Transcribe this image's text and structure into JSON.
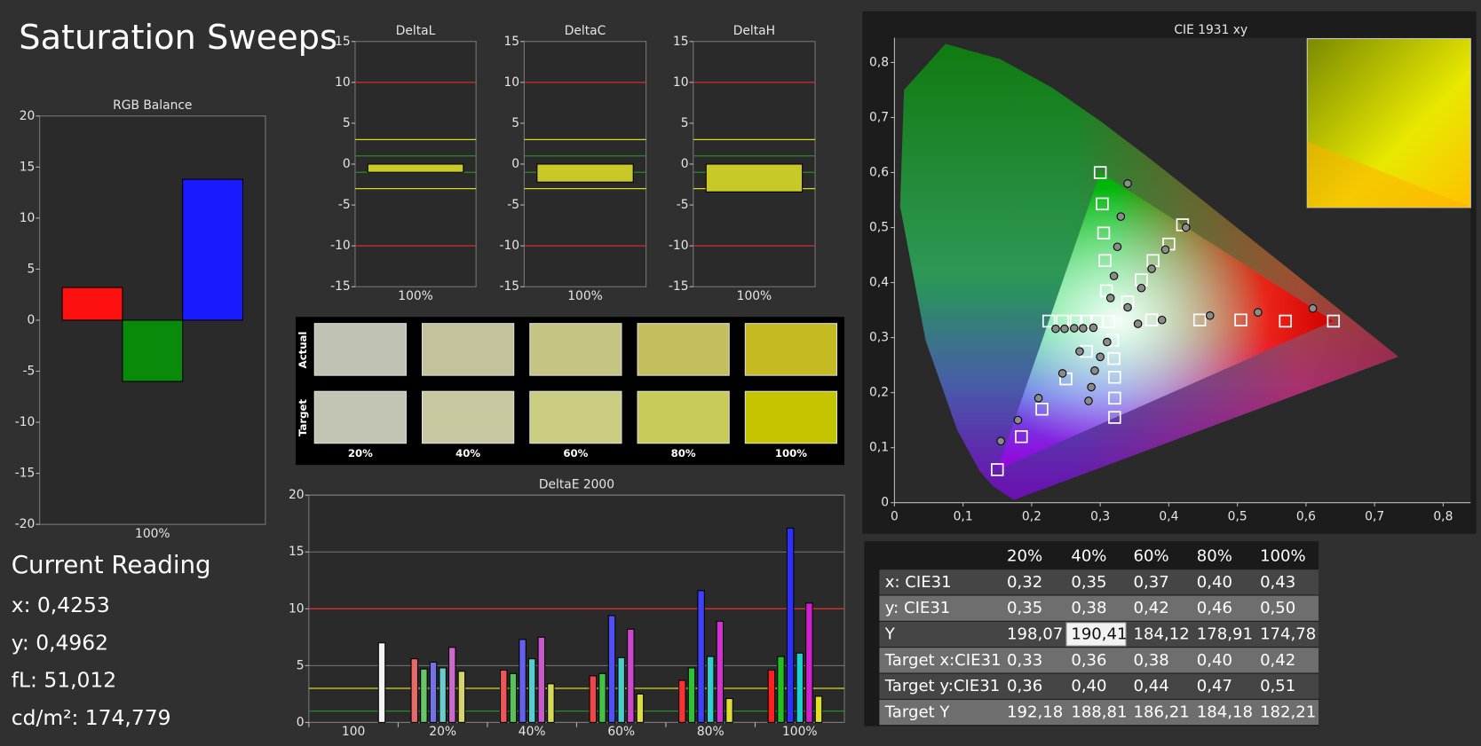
{
  "title": "Saturation Sweeps",
  "current_reading": {
    "heading": "Current Reading",
    "lines": [
      "x: 0,4253",
      "y: 0,4962",
      "fL: 51,012",
      "cd/m²: 174,779"
    ]
  },
  "swatches": {
    "row_labels": [
      "Actual",
      "Target"
    ],
    "columns": [
      "20%",
      "40%",
      "60%",
      "80%",
      "100%"
    ],
    "colors": [
      [
        "#c0c2b4",
        "#c4c29c",
        "#c6c482",
        "#c4be5c",
        "#c6ba22"
      ],
      [
        "#c2c4b4",
        "#c8c8a0",
        "#cacc82",
        "#c8cb58",
        "#c4c400"
      ]
    ]
  },
  "table": {
    "columns": [
      "20%",
      "40%",
      "60%",
      "80%",
      "100%"
    ],
    "rows": [
      {
        "label": "x: CIE31",
        "cells": [
          "0,32",
          "0,35",
          "0,37",
          "0,40",
          "0,43"
        ]
      },
      {
        "label": "y: CIE31",
        "cells": [
          "0,35",
          "0,38",
          "0,42",
          "0,46",
          "0,50"
        ]
      },
      {
        "label": "Y",
        "cells": [
          "198,07",
          "190,41",
          "184,12",
          "178,91",
          "174,78"
        ]
      },
      {
        "label": "Target x:CIE31",
        "cells": [
          "0,33",
          "0,36",
          "0,38",
          "0,40",
          "0,42"
        ]
      },
      {
        "label": "Target y:CIE31",
        "cells": [
          "0,36",
          "0,40",
          "0,44",
          "0,47",
          "0,51"
        ]
      },
      {
        "label": "Target Y",
        "cells": [
          "192,18",
          "188,81",
          "186,21",
          "184,18",
          "182,21"
        ]
      }
    ],
    "selected_cell": {
      "row": 2,
      "cell": 1
    }
  },
  "chart_data": [
    {
      "type": "bar",
      "title": "RGB Balance",
      "categories": [
        "100%"
      ],
      "series": [
        {
          "color": "#ff1010",
          "values": [
            3.2
          ]
        },
        {
          "color": "#0a8a0a",
          "values": [
            -6.0
          ]
        },
        {
          "color": "#1a1aff",
          "values": [
            13.8
          ]
        }
      ],
      "ylim": [
        -20,
        20
      ],
      "yticks": [
        -20,
        -15,
        -10,
        -5,
        0,
        5,
        10,
        15,
        20
      ],
      "grid": false
    },
    {
      "type": "bar",
      "title": "DeltaL",
      "categories": [
        "100%"
      ],
      "values": [
        -1.0
      ],
      "color": "#c8c828",
      "ylim": [
        -15,
        15
      ],
      "yticks": [
        -15,
        -10,
        -5,
        0,
        5,
        10,
        15
      ],
      "grid": false,
      "reference_lines": [
        {
          "value": 10,
          "color": "#d03030"
        },
        {
          "value": -10,
          "color": "#d03030"
        },
        {
          "value": 3,
          "color": "#d8d820"
        },
        {
          "value": -3,
          "color": "#d8d820"
        },
        {
          "value": 1,
          "color": "#2a8a2a"
        },
        {
          "value": -1,
          "color": "#2a8a2a"
        }
      ]
    },
    {
      "type": "bar",
      "title": "DeltaC",
      "categories": [
        "100%"
      ],
      "values": [
        -2.2
      ],
      "color": "#c8c828",
      "ylim": [
        -15,
        15
      ],
      "yticks": [
        -15,
        -10,
        -5,
        0,
        5,
        10,
        15
      ],
      "grid": false,
      "reference_lines": [
        {
          "value": 10,
          "color": "#d03030"
        },
        {
          "value": -10,
          "color": "#d03030"
        },
        {
          "value": 3,
          "color": "#d8d820"
        },
        {
          "value": -3,
          "color": "#d8d820"
        },
        {
          "value": 1,
          "color": "#2a8a2a"
        },
        {
          "value": -1,
          "color": "#2a8a2a"
        }
      ]
    },
    {
      "type": "bar",
      "title": "DeltaH",
      "categories": [
        "100%"
      ],
      "values": [
        -3.4
      ],
      "color": "#c8c828",
      "ylim": [
        -15,
        15
      ],
      "yticks": [
        -15,
        -10,
        -5,
        0,
        5,
        10,
        15
      ],
      "grid": false,
      "reference_lines": [
        {
          "value": 10,
          "color": "#d03030"
        },
        {
          "value": -10,
          "color": "#d03030"
        },
        {
          "value": 3,
          "color": "#d8d820"
        },
        {
          "value": -3,
          "color": "#d8d820"
        },
        {
          "value": 1,
          "color": "#2a8a2a"
        },
        {
          "value": -1,
          "color": "#2a8a2a"
        }
      ]
    },
    {
      "type": "bar",
      "title": "DeltaE 2000",
      "categories": [
        "100",
        "20%",
        "40%",
        "60%",
        "80%",
        "100%"
      ],
      "series": [
        {
          "color": "#ff2020",
          "values": [
            null,
            5.6,
            4.6,
            4.1,
            3.7,
            4.6
          ]
        },
        {
          "color": "#20c020",
          "values": [
            null,
            4.7,
            4.3,
            4.3,
            4.8,
            5.8
          ]
        },
        {
          "color": "#3030ff",
          "values": [
            null,
            5.3,
            7.3,
            9.4,
            11.6,
            17.1
          ]
        },
        {
          "color": "#20d0d0",
          "values": [
            null,
            4.8,
            5.6,
            5.7,
            5.8,
            6.1
          ]
        },
        {
          "color": "#d020d0",
          "values": [
            null,
            6.6,
            7.5,
            8.2,
            8.9,
            10.5
          ]
        },
        {
          "color": "#e0e020",
          "values": [
            null,
            4.5,
            3.4,
            2.5,
            2.1,
            2.3
          ]
        },
        {
          "color": "#f4f4f4",
          "values": [
            7.0,
            null,
            null,
            null,
            null,
            null
          ]
        }
      ],
      "ylim": [
        0,
        20
      ],
      "yticks": [
        0,
        5,
        10,
        15,
        20
      ],
      "grid": true,
      "reference_lines": [
        {
          "value": 10,
          "color": "#d03030"
        },
        {
          "value": 3,
          "color": "#d8d820"
        },
        {
          "value": 1,
          "color": "#2a8a2a"
        }
      ]
    },
    {
      "type": "scatter",
      "title": "CIE 1931 xy",
      "xlim": [
        0,
        0.84
      ],
      "ylim": [
        0,
        0.845
      ],
      "xticks": [
        0,
        {
          "value": 0.1,
          "label": "0,1"
        },
        {
          "value": 0.2,
          "label": "0,2"
        },
        {
          "value": 0.3,
          "label": "0,3"
        },
        {
          "value": 0.4,
          "label": "0,4"
        },
        {
          "value": 0.5,
          "label": "0,5"
        },
        {
          "value": 0.6,
          "label": "0,6"
        },
        {
          "value": 0.7,
          "label": "0,7"
        },
        {
          "value": 0.8,
          "label": "0,8"
        }
      ],
      "yticks": [
        0,
        {
          "value": 0.1,
          "label": "0,1"
        },
        {
          "value": 0.2,
          "label": "0,2"
        },
        {
          "value": 0.3,
          "label": "0,3"
        },
        {
          "value": 0.4,
          "label": "0,4"
        },
        {
          "value": 0.5,
          "label": "0,5"
        },
        {
          "value": 0.6,
          "label": "0,6"
        },
        {
          "value": 0.7,
          "label": "0,7"
        },
        {
          "value": 0.8,
          "label": "0,8"
        }
      ],
      "series": [
        {
          "marker": "square",
          "color": "#ffffff",
          "x": [
            0.64,
            0.57,
            0.505,
            0.445,
            0.375,
            0.3,
            0.303,
            0.305,
            0.307,
            0.309,
            0.15,
            0.185,
            0.215,
            0.25,
            0.28,
            0.225,
            0.245,
            0.265,
            0.28,
            0.295,
            0.321,
            0.321,
            0.321,
            0.32,
            0.318,
            0.42,
            0.4,
            0.377,
            0.36,
            0.34,
            0.3127
          ],
          "y": [
            0.33,
            0.33,
            0.332,
            0.332,
            0.332,
            0.6,
            0.543,
            0.49,
            0.44,
            0.385,
            0.06,
            0.12,
            0.17,
            0.225,
            0.275,
            0.33,
            0.33,
            0.33,
            0.33,
            0.33,
            0.155,
            0.19,
            0.228,
            0.262,
            0.295,
            0.505,
            0.47,
            0.44,
            0.405,
            0.365,
            0.329
          ]
        },
        {
          "marker": "circle",
          "color": "#8a8a8a",
          "x": [
            0.61,
            0.53,
            0.46,
            0.39,
            0.355,
            0.34,
            0.33,
            0.325,
            0.32,
            0.315,
            0.155,
            0.18,
            0.21,
            0.245,
            0.27,
            0.235,
            0.248,
            0.262,
            0.275,
            0.29,
            0.283,
            0.287,
            0.292,
            0.3,
            0.31,
            0.425,
            0.395,
            0.375,
            0.36,
            0.34
          ],
          "y": [
            0.353,
            0.346,
            0.34,
            0.332,
            0.325,
            0.58,
            0.52,
            0.465,
            0.412,
            0.372,
            0.112,
            0.15,
            0.19,
            0.235,
            0.275,
            0.316,
            0.316,
            0.317,
            0.317,
            0.318,
            0.185,
            0.21,
            0.24,
            0.265,
            0.292,
            0.5,
            0.46,
            0.425,
            0.39,
            0.355
          ]
        }
      ]
    }
  ]
}
